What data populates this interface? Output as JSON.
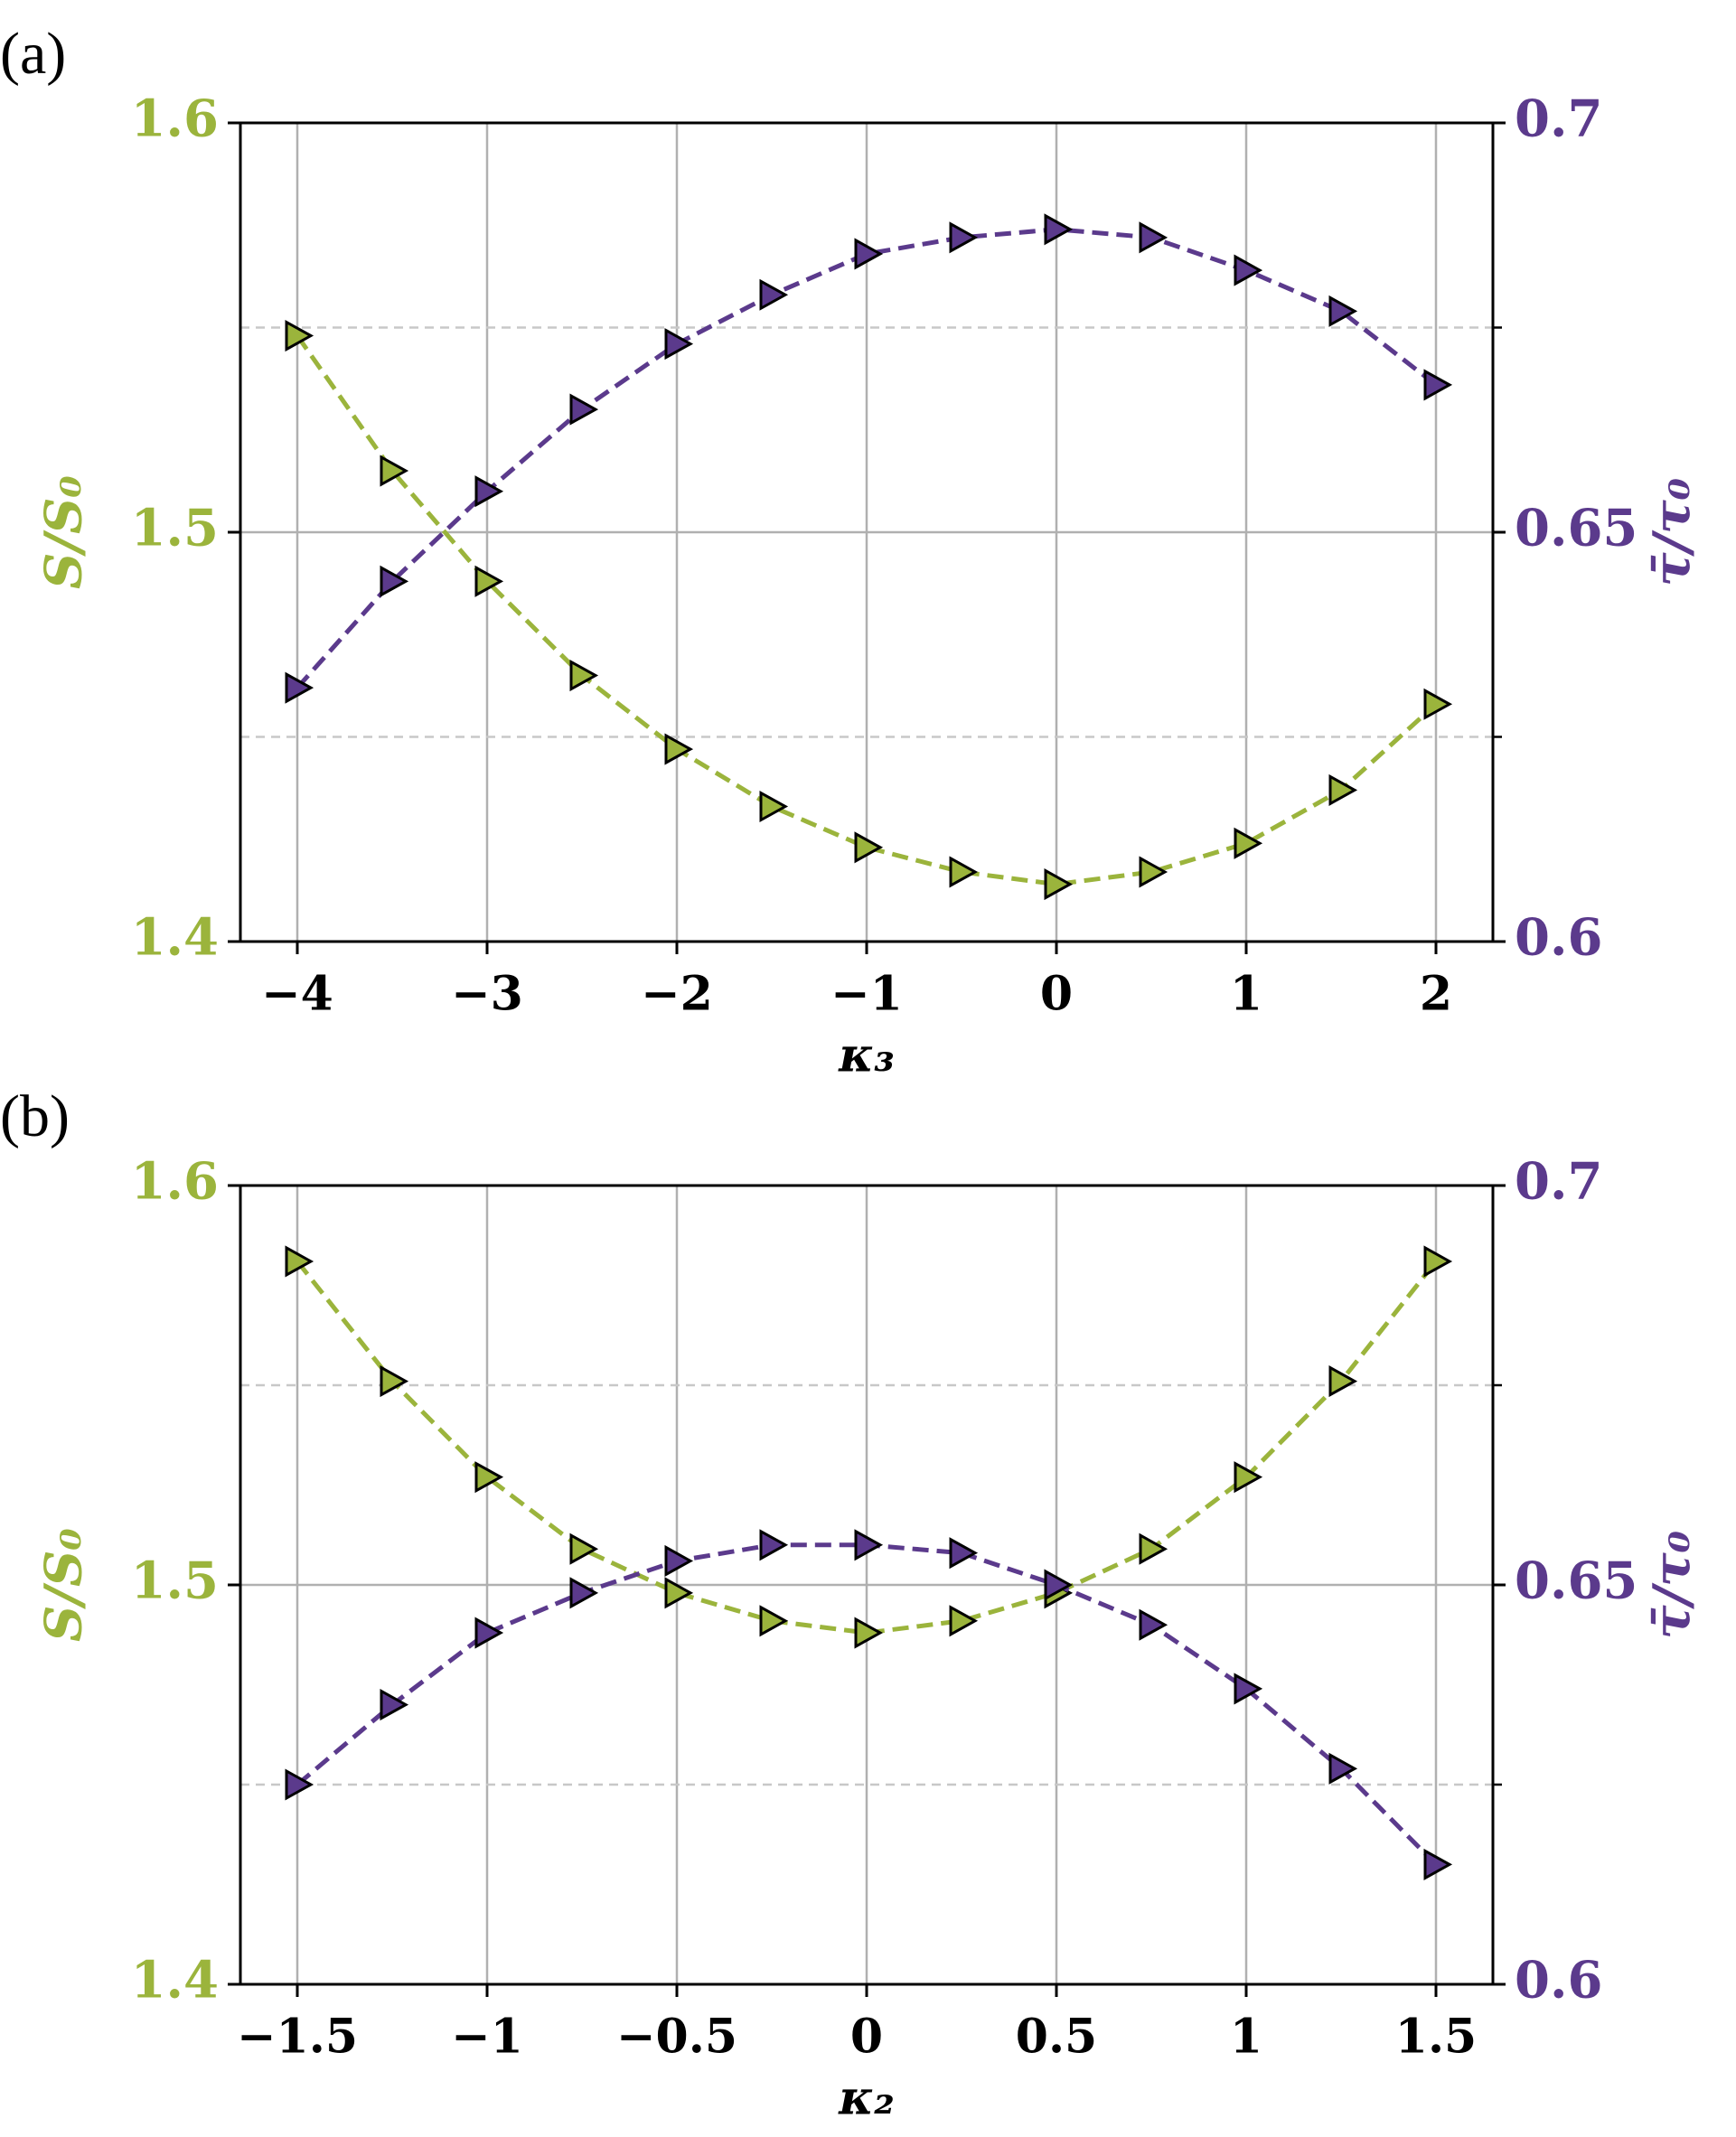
{
  "chart_data": [
    {
      "type": "line",
      "panel_label": "(a)",
      "xlabel": "κ₃",
      "ylabel": "S/S₀",
      "y2label": "τ̄/τ₀",
      "x": [
        -4,
        -3.5,
        -3,
        -2.5,
        -2,
        -1.5,
        -1,
        -0.5,
        0,
        0.5,
        1,
        1.5,
        2
      ],
      "series": [
        {
          "name": "S/S₀",
          "color": "#9bb43c",
          "values": [
            1.548,
            1.515,
            1.488,
            1.465,
            1.447,
            1.433,
            1.423,
            1.417,
            1.414,
            1.417,
            1.424,
            1.437,
            1.458
          ]
        },
        {
          "name": "τ̄/τ₀",
          "color": "#5b3a8c",
          "axis": "y2",
          "values": [
            0.631,
            0.644,
            0.655,
            0.665,
            0.673,
            0.679,
            0.684,
            0.686,
            0.687,
            0.686,
            0.682,
            0.677,
            0.668
          ]
        }
      ],
      "xlim": [
        -4.3,
        2.3
      ],
      "xticks": [
        {
          "value": -4,
          "label": "−4"
        },
        {
          "value": -3,
          "label": "−3"
        },
        {
          "value": -2,
          "label": "−2"
        },
        {
          "value": -1,
          "label": "−1"
        },
        0,
        1,
        2
      ],
      "ylim": [
        1.4,
        1.6
      ],
      "yticks": [
        1.4,
        1.5,
        1.6
      ],
      "yminor": [
        1.45,
        1.55
      ],
      "y2lim": [
        0.6,
        0.7
      ],
      "y2ticks": [
        0.6,
        0.65,
        0.7
      ],
      "grid": true
    },
    {
      "type": "line",
      "panel_label": "(b)",
      "xlabel": "κ₂",
      "ylabel": "S/S₀",
      "y2label": "τ̄/τ₀",
      "x": [
        -1.5,
        -1.25,
        -1,
        -0.75,
        -0.5,
        -0.25,
        0,
        0.25,
        0.5,
        0.75,
        1,
        1.25,
        1.5
      ],
      "series": [
        {
          "name": "S/S₀",
          "color": "#9bb43c",
          "values": [
            1.581,
            1.551,
            1.527,
            1.509,
            1.498,
            1.491,
            1.488,
            1.491,
            1.498,
            1.509,
            1.527,
            1.551,
            1.581
          ]
        },
        {
          "name": "τ̄/τ₀",
          "color": "#5b3a8c",
          "axis": "y2",
          "values": [
            0.625,
            0.635,
            0.644,
            0.649,
            0.653,
            0.655,
            0.655,
            0.654,
            0.65,
            0.645,
            0.637,
            0.627,
            0.615
          ]
        }
      ],
      "xlim": [
        -1.65,
        1.65
      ],
      "xticks": [
        {
          "value": -1.5,
          "label": "−1.5"
        },
        {
          "value": -1,
          "label": "−1"
        },
        {
          "value": -0.5,
          "label": "−0.5"
        },
        0,
        0.5,
        1,
        1.5
      ],
      "ylim": [
        1.4,
        1.6
      ],
      "yticks": [
        1.4,
        1.5,
        1.6
      ],
      "yminor": [
        1.45,
        1.55
      ],
      "y2lim": [
        0.6,
        0.7
      ],
      "y2ticks": [
        0.6,
        0.65,
        0.7
      ],
      "grid": true
    }
  ]
}
